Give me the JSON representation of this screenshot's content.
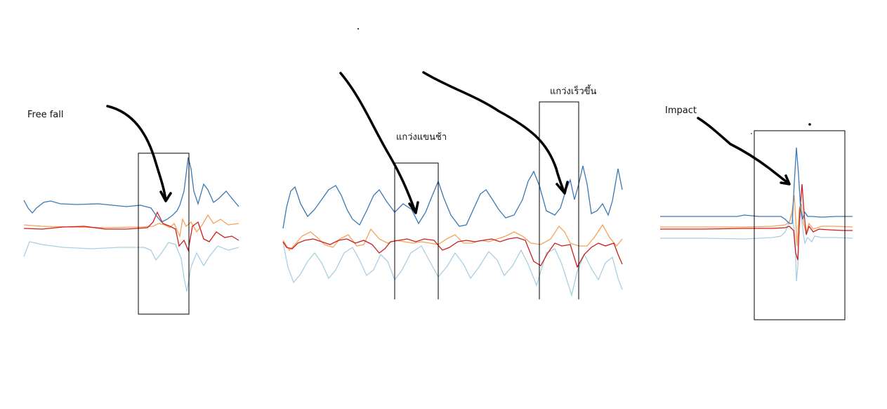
{
  "colors": {
    "series_dark_blue": "#3b78b4",
    "series_light_blue": "#a9cfe2",
    "series_orange": "#f4a25a",
    "series_red": "#cf1d1d",
    "arrow": "#000000",
    "box": "#000000"
  },
  "panels": [
    {
      "id": "free-fall",
      "label": "Free fall",
      "event": "free-fall"
    },
    {
      "id": "swing",
      "labels": [
        "แกว่งแขนช้า",
        "แกว่งเร็วขึ้น"
      ],
      "events": [
        "slow-swing",
        "fast-swing"
      ]
    },
    {
      "id": "impact",
      "label": "Impact",
      "event": "impact"
    }
  ],
  "chart_data": [
    {
      "type": "line",
      "name": "free-fall-panel",
      "series_colors": [
        "#3b78b4",
        "#a9cfe2",
        "#f4a25a",
        "#cf1d1d"
      ],
      "grid": false,
      "legend": "none"
    },
    {
      "type": "line",
      "name": "swing-panel",
      "series_colors": [
        "#3b78b4",
        "#a9cfe2",
        "#f4a25a",
        "#cf1d1d"
      ],
      "grid": false,
      "legend": "none"
    },
    {
      "type": "line",
      "name": "impact-panel",
      "series_colors": [
        "#3b78b4",
        "#a9cfe2",
        "#f4a25a",
        "#cf1d1d"
      ],
      "grid": false,
      "legend": "none"
    }
  ]
}
